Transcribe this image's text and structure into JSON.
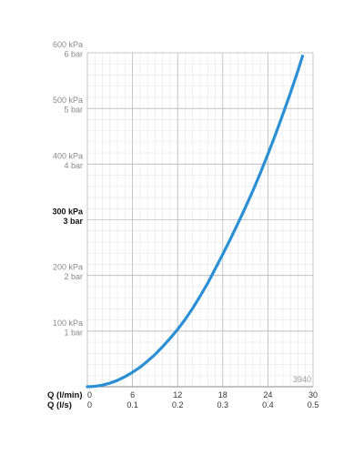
{
  "chart_data": {
    "type": "line",
    "title": "",
    "code_label": "3940",
    "x_axes": [
      {
        "label": "Q (l/min)",
        "ticks": [
          "0",
          "6",
          "12",
          "18",
          "24",
          "30"
        ],
        "range": [
          0,
          30
        ]
      },
      {
        "label": "Q (l/s)",
        "ticks": [
          "0",
          "0.1",
          "0.2",
          "0.3",
          "0.4",
          "0.5"
        ],
        "range": [
          0,
          0.5
        ]
      }
    ],
    "y_axis": {
      "range": [
        0,
        600
      ],
      "unit": "kPa",
      "ticks": [
        {
          "value": 100,
          "kpa": "100 kPa",
          "bar": "1 bar",
          "bold": false
        },
        {
          "value": 200,
          "kpa": "200 kPa",
          "bar": "2 bar",
          "bold": false
        },
        {
          "value": 300,
          "kpa": "300 kPa",
          "bar": "3 bar",
          "bold": true
        },
        {
          "value": 400,
          "kpa": "400 kPa",
          "bar": "4 bar",
          "bold": false
        },
        {
          "value": 500,
          "kpa": "500 kPa",
          "bar": "5 bar",
          "bold": false
        },
        {
          "value": 600,
          "kpa": "600 kPa",
          "bar": "6 bar",
          "bold": false
        }
      ]
    },
    "grid": true,
    "series": [
      {
        "color": "#2a8fd4",
        "x": [
          0,
          1,
          2,
          3,
          4,
          5,
          6,
          7,
          8,
          9,
          10,
          11,
          12,
          13,
          14,
          15,
          16,
          17,
          18,
          19,
          20,
          21,
          22,
          23,
          24,
          25,
          26,
          27,
          28,
          28.6
        ],
        "y": [
          0,
          0.7,
          3,
          6.5,
          11.5,
          18,
          26,
          35,
          46,
          58,
          72,
          87,
          103,
          121,
          141,
          163,
          186,
          212,
          238,
          265,
          293,
          322,
          352,
          384,
          418,
          453,
          490,
          528,
          568,
          594
        ]
      }
    ]
  }
}
